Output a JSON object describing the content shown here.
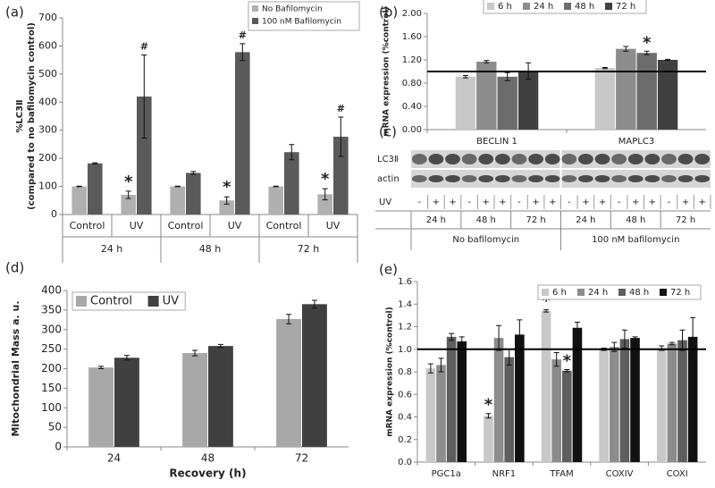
{
  "chart_data": [
    {
      "type": "bar",
      "panel_label": "(a)",
      "ylabel": [
        "%LC3Ⅱ",
        "(compared to no bafilomycin control)"
      ],
      "categories": [
        "Control",
        "UV",
        "Control",
        "UV",
        "Control",
        "UV"
      ],
      "groups": [
        "24 h",
        "48 h",
        "72 h"
      ],
      "series": [
        {
          "name": "No Bafilomycin",
          "color": "#b0b0b0",
          "values": [
            100,
            70,
            100,
            50,
            100,
            72
          ],
          "errors": [
            1,
            13,
            1,
            13,
            1,
            20
          ],
          "markers": [
            null,
            "*",
            null,
            "*",
            null,
            "*"
          ]
        },
        {
          "name": "100 nM Bafilomycin",
          "color": "#5a5a5a",
          "values": [
            182,
            420,
            148,
            578,
            222,
            277
          ],
          "errors": [
            2,
            148,
            5,
            30,
            27,
            70
          ],
          "markers": [
            null,
            "#",
            null,
            "#",
            null,
            "#"
          ]
        }
      ],
      "ylim": [
        0,
        700
      ],
      "yticks": [
        0,
        100,
        200,
        300,
        400,
        500,
        600,
        700
      ],
      "legend": "top-right"
    },
    {
      "type": "bar",
      "panel_label": "(b)",
      "ylabel": "mRNA expression (%control)",
      "categories": [
        "BECLIN 1",
        "MAPLC3"
      ],
      "series": [
        {
          "name": "6 h",
          "color": "#c8c8c8",
          "values": [
            0.91,
            1.06
          ],
          "errors": [
            0.02,
            0.01
          ],
          "markers": [
            null,
            null
          ]
        },
        {
          "name": "24 h",
          "color": "#8c8c8c",
          "values": [
            1.17,
            1.39
          ],
          "errors": [
            0.02,
            0.04
          ],
          "markers": [
            null,
            null
          ]
        },
        {
          "name": "48 h",
          "color": "#6c6c6c",
          "values": [
            0.91,
            1.32
          ],
          "errors": [
            0.07,
            0.03
          ],
          "markers": [
            null,
            "*"
          ]
        },
        {
          "name": "72 h",
          "color": "#404040",
          "values": [
            1.01,
            1.2
          ],
          "errors": [
            0.14,
            0.01
          ],
          "markers": [
            null,
            null
          ]
        }
      ],
      "ylim": [
        0,
        2
      ],
      "yticks": [
        {
          "value": 0,
          "label": "0.00"
        },
        {
          "value": 0.4,
          "label": "0.40"
        },
        {
          "value": 0.8,
          "label": "0.80"
        },
        {
          "value": 1.2,
          "label": "1.20"
        },
        {
          "value": 1.6,
          "label": "1.60"
        },
        {
          "value": 2,
          "label": "2.00"
        }
      ],
      "reference_line": 1,
      "legend": "top"
    },
    {
      "type": "bar",
      "panel_label": "(d)",
      "ylabel": "Mitochondrial Mass a. u.",
      "xlabel": "Recovery (h)",
      "categories": [
        "24",
        "48",
        "72"
      ],
      "series": [
        {
          "name": "Control",
          "color": "#a8a8a8",
          "values": [
            203,
            240,
            327
          ],
          "errors": [
            3,
            7,
            12
          ],
          "markers": [
            null,
            null,
            null
          ]
        },
        {
          "name": "UV",
          "color": "#404040",
          "values": [
            228,
            258,
            365
          ],
          "errors": [
            6,
            4,
            10
          ],
          "markers": [
            null,
            null,
            null
          ]
        }
      ],
      "ylim": [
        0,
        400
      ],
      "yticks": [
        0,
        50,
        100,
        150,
        200,
        250,
        300,
        350,
        400
      ],
      "legend": "top-left"
    },
    {
      "type": "bar",
      "panel_label": "(e)",
      "ylabel": "mRNA expression (%control)",
      "categories": [
        "PGC1a",
        "NRF1",
        "TFAM",
        "COXIV",
        "COXI"
      ],
      "series": [
        {
          "name": "6 h",
          "color": "#c8c8c8",
          "values": [
            0.83,
            0.41,
            1.34,
            1.0,
            1.01
          ],
          "errors": [
            0.04,
            0.02,
            0.01,
            0.01,
            0.02
          ],
          "markers": [
            null,
            "*",
            "*",
            null,
            null
          ]
        },
        {
          "name": "24 h",
          "color": "#8c8c8c",
          "values": [
            0.86,
            1.1,
            0.91,
            1.02,
            1.05
          ],
          "errors": [
            0.06,
            0.11,
            0.06,
            0.04,
            0.01
          ],
          "markers": [
            null,
            null,
            null,
            null,
            null
          ]
        },
        {
          "name": "48 h",
          "color": "#5e5e5e",
          "values": [
            1.11,
            0.93,
            0.81,
            1.09,
            1.08
          ],
          "errors": [
            0.03,
            0.07,
            0.01,
            0.08,
            0.09
          ],
          "markers": [
            null,
            null,
            "*",
            null,
            null
          ]
        },
        {
          "name": "72 h",
          "color": "#111111",
          "values": [
            1.07,
            1.13,
            1.19,
            1.1,
            1.11
          ],
          "errors": [
            0.04,
            0.13,
            0.05,
            0.01,
            0.17
          ],
          "markers": [
            null,
            null,
            null,
            null,
            null
          ]
        }
      ],
      "ylim": [
        0,
        1.6
      ],
      "yticks": [
        {
          "value": 0,
          "label": "0.0"
        },
        0.2,
        0.4,
        0.6,
        0.8,
        {
          "value": 1,
          "label": "1.0"
        },
        1.2,
        1.4,
        1.6
      ],
      "reference_line": 1,
      "legend": "top-right"
    }
  ],
  "blot": {
    "panel_label": "(c)",
    "rows": [
      "LC3Ⅱ",
      "actin"
    ],
    "uv_label": "UV",
    "uv_signs": [
      "-",
      "+",
      "+",
      "-",
      "+",
      "+",
      "-",
      "+",
      "+",
      "-",
      "+",
      "+",
      "-",
      "+",
      "+",
      "-",
      "+",
      "+"
    ],
    "times": [
      "24 h",
      "48 h",
      "72 h",
      "24 h",
      "48 h",
      "72 h"
    ],
    "treatments": [
      "No bafilomycin",
      "100 nM bafilomycin"
    ]
  }
}
